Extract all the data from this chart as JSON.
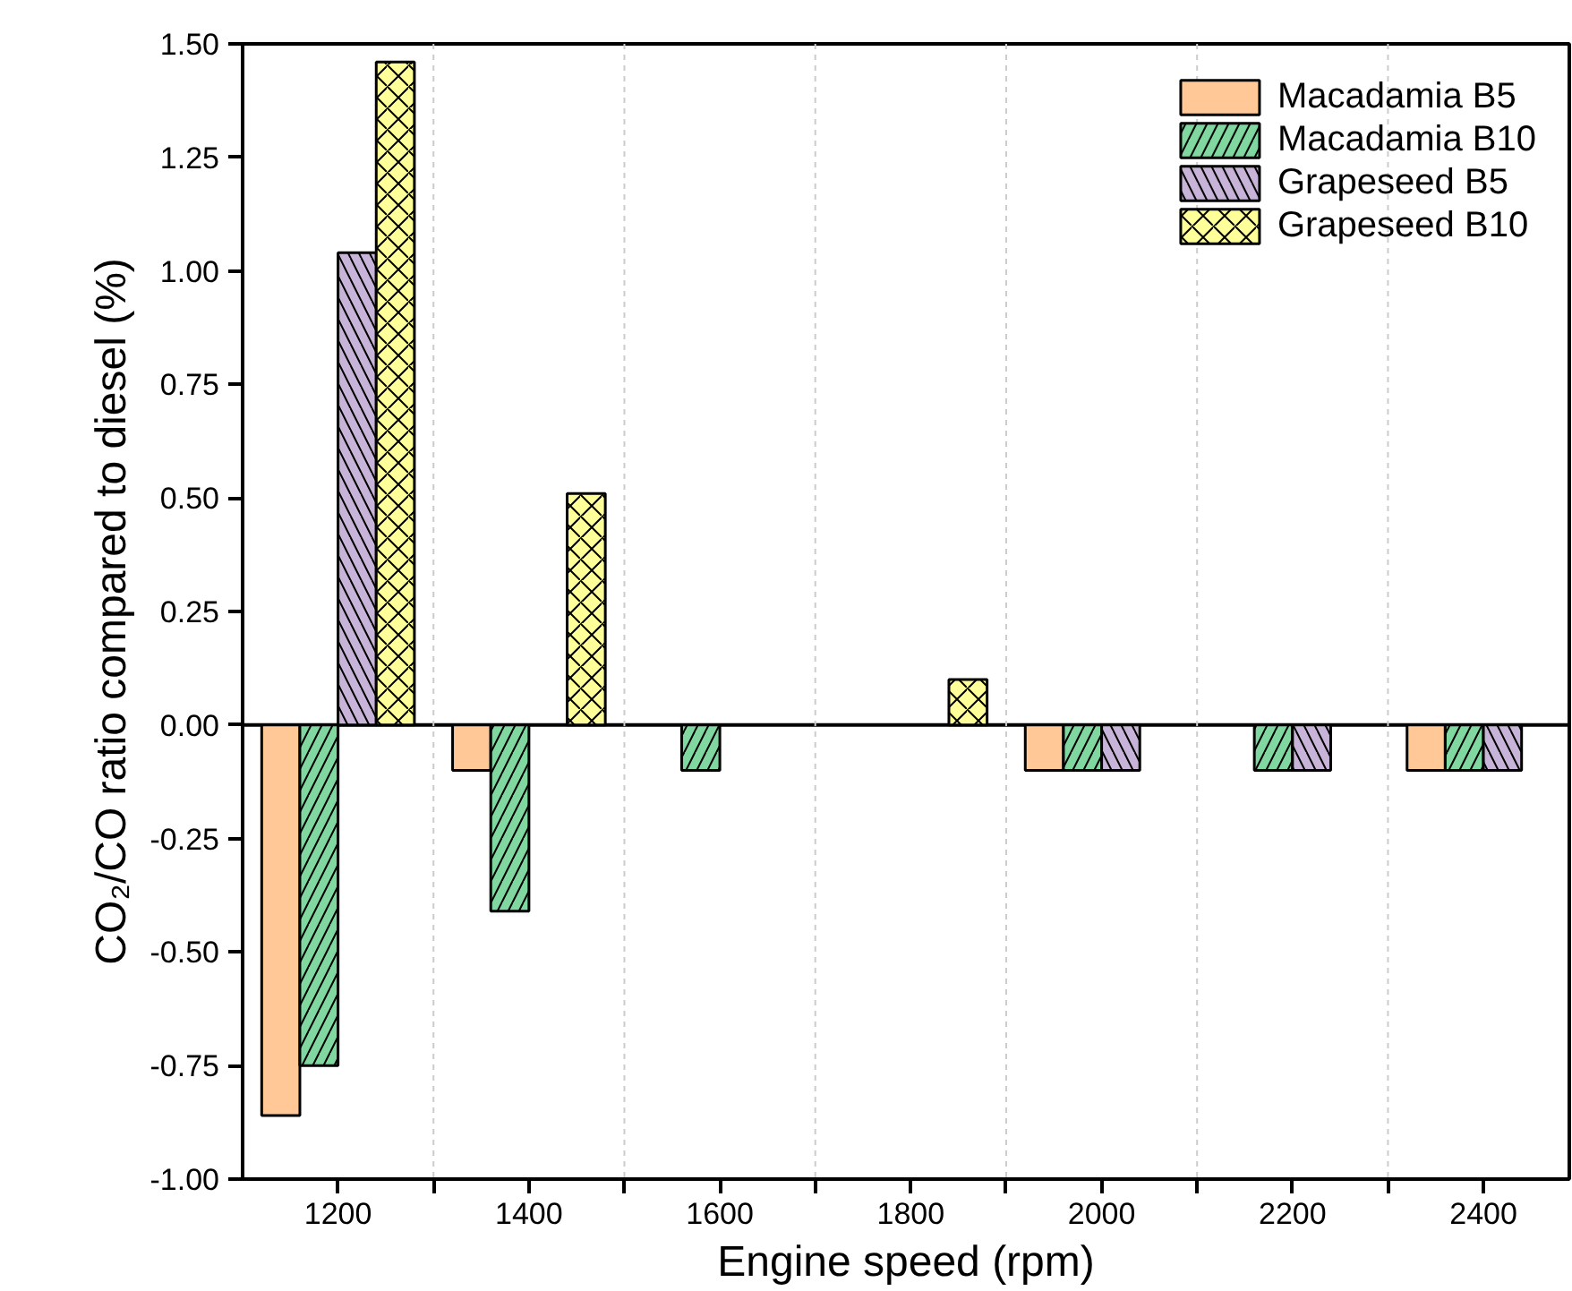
{
  "chart_data": {
    "type": "bar",
    "xlabel": "Engine speed (rpm)",
    "ylabel": "CO₂/CO ratio compared to diesel (%)",
    "x": [
      1200,
      1400,
      1600,
      1800,
      2000,
      2200,
      2400
    ],
    "series": [
      {
        "name": "Macadamia B5",
        "color": "#ffc896",
        "values": [
          -0.86,
          -0.1,
          null,
          null,
          -0.1,
          null,
          -0.1
        ]
      },
      {
        "name": "Macadamia B10",
        "color": "#80d8a0",
        "values": [
          -0.75,
          -0.41,
          -0.1,
          null,
          -0.1,
          -0.1,
          -0.1
        ]
      },
      {
        "name": "Grapeseed B5",
        "color": "#c8b4d8",
        "values": [
          1.04,
          null,
          null,
          null,
          -0.1,
          -0.1,
          -0.1
        ]
      },
      {
        "name": "Grapeseed B10",
        "color": "#ffff99",
        "values": [
          1.46,
          0.51,
          null,
          0.1,
          null,
          null,
          null
        ]
      }
    ],
    "xlim": [
      1100,
      2490
    ],
    "xticks": [
      {
        "value": 1200,
        "label": "1200"
      },
      {
        "value": 1300,
        "label": null
      },
      {
        "value": 1400,
        "label": "1400"
      },
      {
        "value": 1500,
        "label": null
      },
      {
        "value": 1600,
        "label": "1600"
      },
      {
        "value": 1700,
        "label": null
      },
      {
        "value": 1800,
        "label": "1800"
      },
      {
        "value": 1900,
        "label": null
      },
      {
        "value": 2000,
        "label": "2000"
      },
      {
        "value": 2100,
        "label": null
      },
      {
        "value": 2200,
        "label": "2200"
      },
      {
        "value": 2300,
        "label": null
      },
      {
        "value": 2400,
        "label": "2400"
      }
    ],
    "ylim": [
      -1.0,
      1.5
    ],
    "yticks": [
      {
        "value": -1.0,
        "label": "-1.00"
      },
      {
        "value": -0.75,
        "label": "-0.75"
      },
      {
        "value": -0.5,
        "label": "-0.50"
      },
      {
        "value": -0.25,
        "label": "-0.25"
      },
      {
        "value": 0,
        "label": "0.00"
      },
      {
        "value": 0.25,
        "label": "0.25"
      },
      {
        "value": 0.5,
        "label": "0.50"
      },
      {
        "value": 0.75,
        "label": "0.75"
      },
      {
        "value": 1.0,
        "label": "1.00"
      },
      {
        "value": 1.25,
        "label": "1.25"
      },
      {
        "value": 1.5,
        "label": "1.50"
      }
    ],
    "ref_lines": [
      {
        "axis": "y",
        "value": 0
      },
      {
        "axis": "x",
        "value": 1300,
        "color": "#cccccc",
        "line_style": "dashed"
      },
      {
        "axis": "x",
        "value": 1500,
        "color": "#cccccc",
        "line_style": "dashed"
      },
      {
        "axis": "x",
        "value": 1700,
        "color": "#cccccc",
        "line_style": "dashed"
      },
      {
        "axis": "x",
        "value": 1900,
        "color": "#cccccc",
        "line_style": "dashed"
      },
      {
        "axis": "x",
        "value": 2100,
        "color": "#cccccc",
        "line_style": "dashed"
      },
      {
        "axis": "x",
        "value": 2300,
        "color": "#cccccc",
        "line_style": "dashed"
      }
    ],
    "legend": "top right"
  }
}
